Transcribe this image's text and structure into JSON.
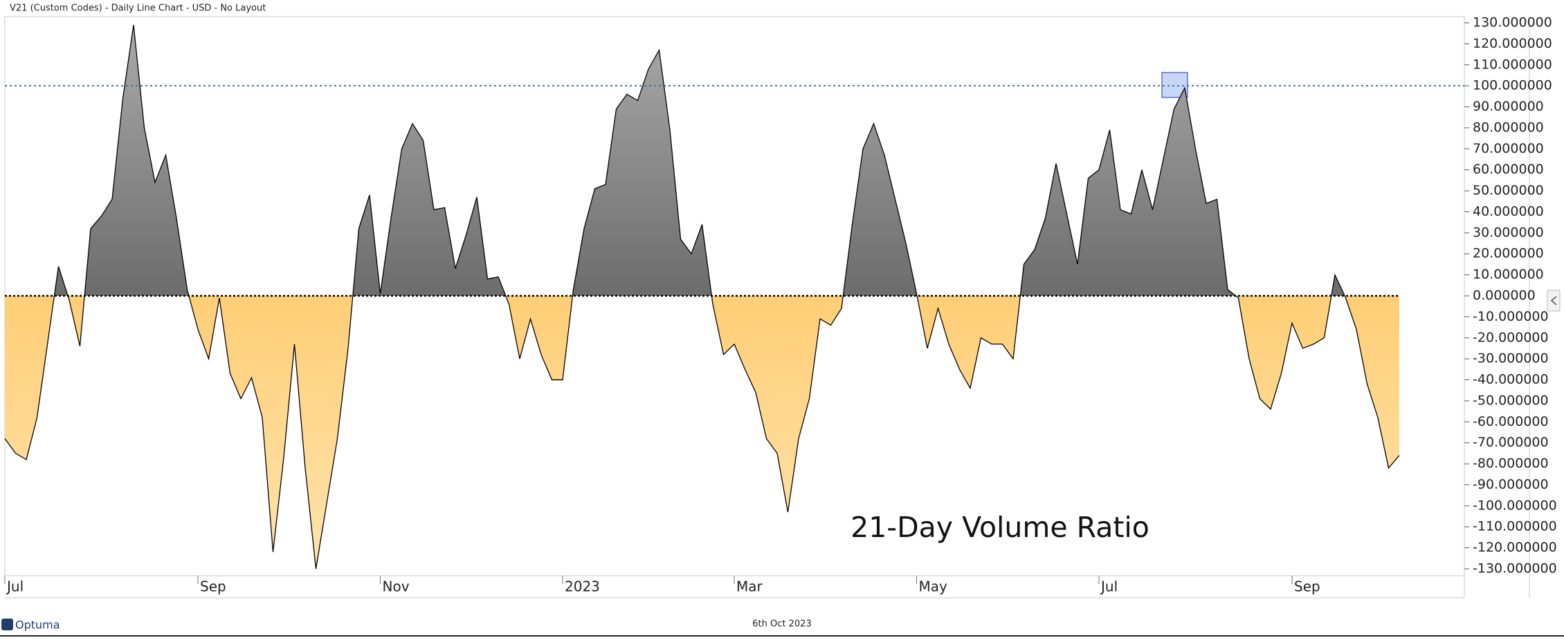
{
  "header": "V21 (Custom Codes) - Daily Line Chart - USD - No Layout",
  "footer": {
    "logo": "Optuma",
    "date": "6th Oct 2023"
  },
  "chart_data": {
    "type": "line",
    "title": "21-Day Volume Ratio",
    "categories": [
      "Jul",
      null,
      null,
      null,
      null,
      null,
      null,
      null,
      null,
      null,
      null,
      null,
      null,
      null,
      null,
      null,
      null,
      null,
      "Sep",
      null,
      null,
      null,
      null,
      null,
      null,
      null,
      null,
      null,
      null,
      null,
      null,
      null,
      null,
      null,
      null,
      "Nov",
      null,
      null,
      null,
      null,
      null,
      null,
      null,
      null,
      null,
      null,
      null,
      null,
      null,
      null,
      null,
      null,
      "2023",
      null,
      null,
      null,
      null,
      null,
      null,
      null,
      null,
      null,
      null,
      null,
      null,
      null,
      null,
      null,
      "Mar",
      null,
      null,
      null,
      null,
      null,
      null,
      null,
      null,
      null,
      null,
      null,
      null,
      null,
      null,
      null,
      null,
      "May",
      null,
      null,
      null,
      null,
      null,
      null,
      null,
      null,
      null,
      null,
      null,
      null,
      null,
      null,
      null,
      null,
      "Jul",
      null,
      null,
      null,
      null,
      null,
      null,
      null,
      null,
      null,
      null,
      null,
      null,
      null,
      null,
      null,
      null,
      null,
      "Sep",
      null,
      null,
      null,
      null,
      null,
      null,
      null,
      null,
      null,
      null
    ],
    "values": [
      -68,
      -75,
      -78,
      -58,
      -22,
      14,
      -2,
      -24,
      32,
      38,
      46,
      94,
      129,
      80,
      54,
      67,
      37,
      3,
      -16,
      -30,
      -1,
      -37,
      -49,
      -39,
      -58,
      -122,
      -77,
      -23,
      -82,
      -130,
      -99,
      -68,
      -25,
      32,
      48,
      1,
      37,
      70,
      82,
      74,
      41,
      42,
      13,
      29,
      47,
      8,
      9,
      -4,
      -30,
      -11,
      -28,
      -40,
      -40,
      3,
      32,
      51,
      53,
      89,
      96,
      93,
      108,
      117,
      79,
      27,
      20,
      34,
      -4,
      -28,
      -23,
      -35,
      -46,
      -68,
      -75,
      -103,
      -68,
      -49,
      -11,
      -14,
      -6,
      34,
      70,
      82,
      67,
      46,
      25,
      1,
      -25,
      -6,
      -23,
      -35,
      -44,
      -20,
      -23,
      -23,
      -30,
      15,
      22,
      37,
      63,
      39,
      15,
      56,
      60,
      79,
      41,
      39,
      60,
      41,
      65,
      89,
      99,
      70,
      44,
      46,
      3,
      -1,
      -30,
      -49,
      -54,
      -37,
      -13,
      -25,
      -23,
      -20,
      10,
      -1,
      -16,
      -42,
      -58,
      -82,
      -76
    ],
    "line_color": "#000000",
    "positive_color": "#555555",
    "negative_color": "#ffb940",
    "reference_line": 100,
    "reference_color": "#4a6f96",
    "ylim": [
      -130,
      130
    ],
    "yticks": [
      {
        "value": 130,
        "label": "130.000000"
      },
      {
        "value": 120,
        "label": "120.000000"
      },
      {
        "value": 110,
        "label": "110.000000"
      },
      {
        "value": 100,
        "label": "100.000000"
      },
      {
        "value": 90,
        "label": "90.000000"
      },
      {
        "value": 80,
        "label": "80.000000"
      },
      {
        "value": 70,
        "label": "70.000000"
      },
      {
        "value": 60,
        "label": "60.000000"
      },
      {
        "value": 50,
        "label": "50.000000"
      },
      {
        "value": 40,
        "label": "40.000000"
      },
      {
        "value": 30,
        "label": "30.000000"
      },
      {
        "value": 20,
        "label": "20.000000"
      },
      {
        "value": 10,
        "label": "10.000000"
      },
      {
        "value": 0,
        "label": "0.000000"
      },
      {
        "value": -10,
        "label": "-10.000000"
      },
      {
        "value": -20,
        "label": "-20.000000"
      },
      {
        "value": -30,
        "label": "-30.000000"
      },
      {
        "value": -40,
        "label": "-40.000000"
      },
      {
        "value": -50,
        "label": "-50.000000"
      },
      {
        "value": -60,
        "label": "-60.000000"
      },
      {
        "value": -70,
        "label": "-70.000000"
      },
      {
        "value": -80,
        "label": "-80.000000"
      },
      {
        "value": -90,
        "label": "-90.000000"
      },
      {
        "value": -100,
        "label": "-100.000000"
      },
      {
        "value": -110,
        "label": "-110.000000"
      },
      {
        "value": -120,
        "label": "-120.000000"
      },
      {
        "value": -130,
        "label": "-130.000000"
      }
    ]
  }
}
